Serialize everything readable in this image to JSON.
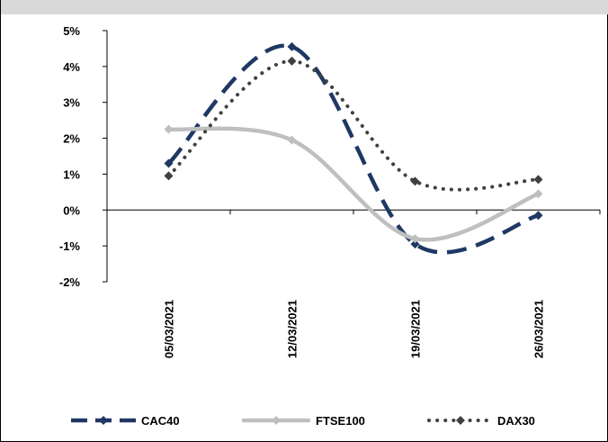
{
  "chart_data": {
    "type": "line",
    "categories": [
      "05/03/2021",
      "12/03/2021",
      "19/03/2021",
      "26/03/2021"
    ],
    "y_tick_labels": [
      "5%",
      "4%",
      "3%",
      "2%",
      "1%",
      "0%",
      "-1%",
      "-2%"
    ],
    "ylim": [
      -2,
      5
    ],
    "unit": "%",
    "grid": false,
    "legend_position": "bottom",
    "series": [
      {
        "name": "CAC40",
        "values": [
          1.3,
          4.55,
          -0.95,
          -0.15
        ],
        "color": "#1f3864",
        "style": "dashed",
        "marker": "diamond"
      },
      {
        "name": "FTSE100",
        "values": [
          2.25,
          1.95,
          -0.8,
          0.45
        ],
        "color": "#bfbfbf",
        "style": "solid",
        "marker": "diamond"
      },
      {
        "name": "DAX30",
        "values": [
          0.95,
          4.15,
          0.8,
          0.85
        ],
        "color": "#404040",
        "style": "dotted",
        "marker": "diamond"
      }
    ]
  }
}
